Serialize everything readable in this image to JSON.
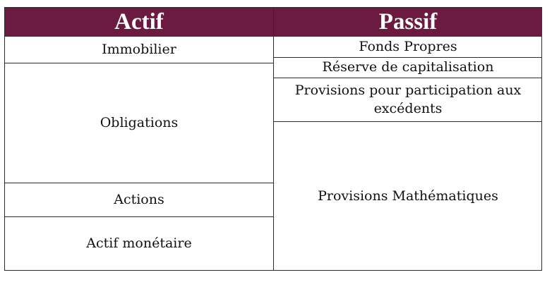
{
  "headers": {
    "actif": "Actif",
    "passif": "Passif"
  },
  "actif": {
    "immobilier": "Immobilier",
    "obligations": "Obligations",
    "actions": "Actions",
    "monetaire": "Actif monétaire"
  },
  "passif": {
    "fonds_propres": "Fonds Propres",
    "reserve": "Réserve de capitalisation",
    "provisions_participation": "Provisions pour participation aux excédents",
    "provisions_math": "Provisions Mathématiques"
  },
  "colors": {
    "header_bg": "#6b1a40",
    "header_text": "#ffffff",
    "border": "#2b2b2b"
  }
}
